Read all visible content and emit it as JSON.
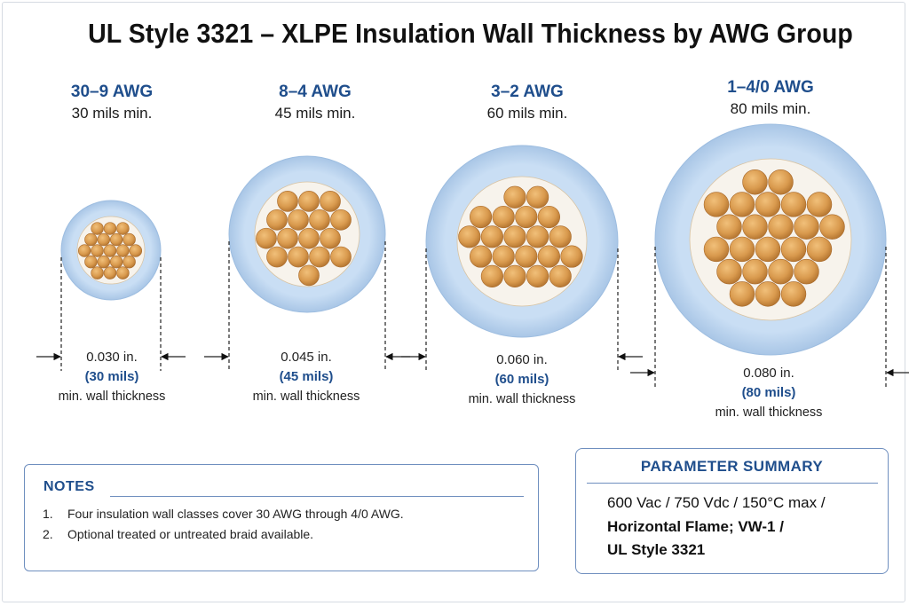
{
  "title": "UL Style 3321 – XLPE Insulation Wall Thickness by AWG Group",
  "groups": [
    {
      "awg": "30–9 AWG",
      "mils_min": "30 mils min.",
      "inches": "0.030 in.",
      "mils": "(30 mils)",
      "wall_label": "min. wall thickness"
    },
    {
      "awg": "8–4 AWG",
      "mils_min": "45 mils min.",
      "inches": "0.045 in.",
      "mils": "(45 mils)",
      "wall_label": "min. wall thickness"
    },
    {
      "awg": "3–2 AWG",
      "mils_min": "60 mils min.",
      "inches": "0.060 in.",
      "mils": "(60 mils)",
      "wall_label": "min. wall thickness"
    },
    {
      "awg": "1–4/0 AWG",
      "mils_min": "80 mils min.",
      "inches": "0.080 in.",
      "mils": "(80 mils)",
      "wall_label": "min. wall thickness"
    }
  ],
  "notes": {
    "title": "NOTES",
    "items": [
      {
        "num": "1.",
        "text": "Four insulation wall classes cover 30 AWG through 4/0 AWG."
      },
      {
        "num": "2.",
        "text": "Optional treated or untreated braid available."
      }
    ]
  },
  "summary": {
    "title": "PARAMETER SUMMARY",
    "line1": "600 Vac / 750 Vdc / 150°C max /",
    "line2": "Horizontal Flame; VW-1 /",
    "line3": "UL Style 3321"
  },
  "colors": {
    "accent": "#1f4e8c",
    "insulation": "#c9def4",
    "copper": "#d99a4e",
    "border": "#6f8fbf"
  }
}
